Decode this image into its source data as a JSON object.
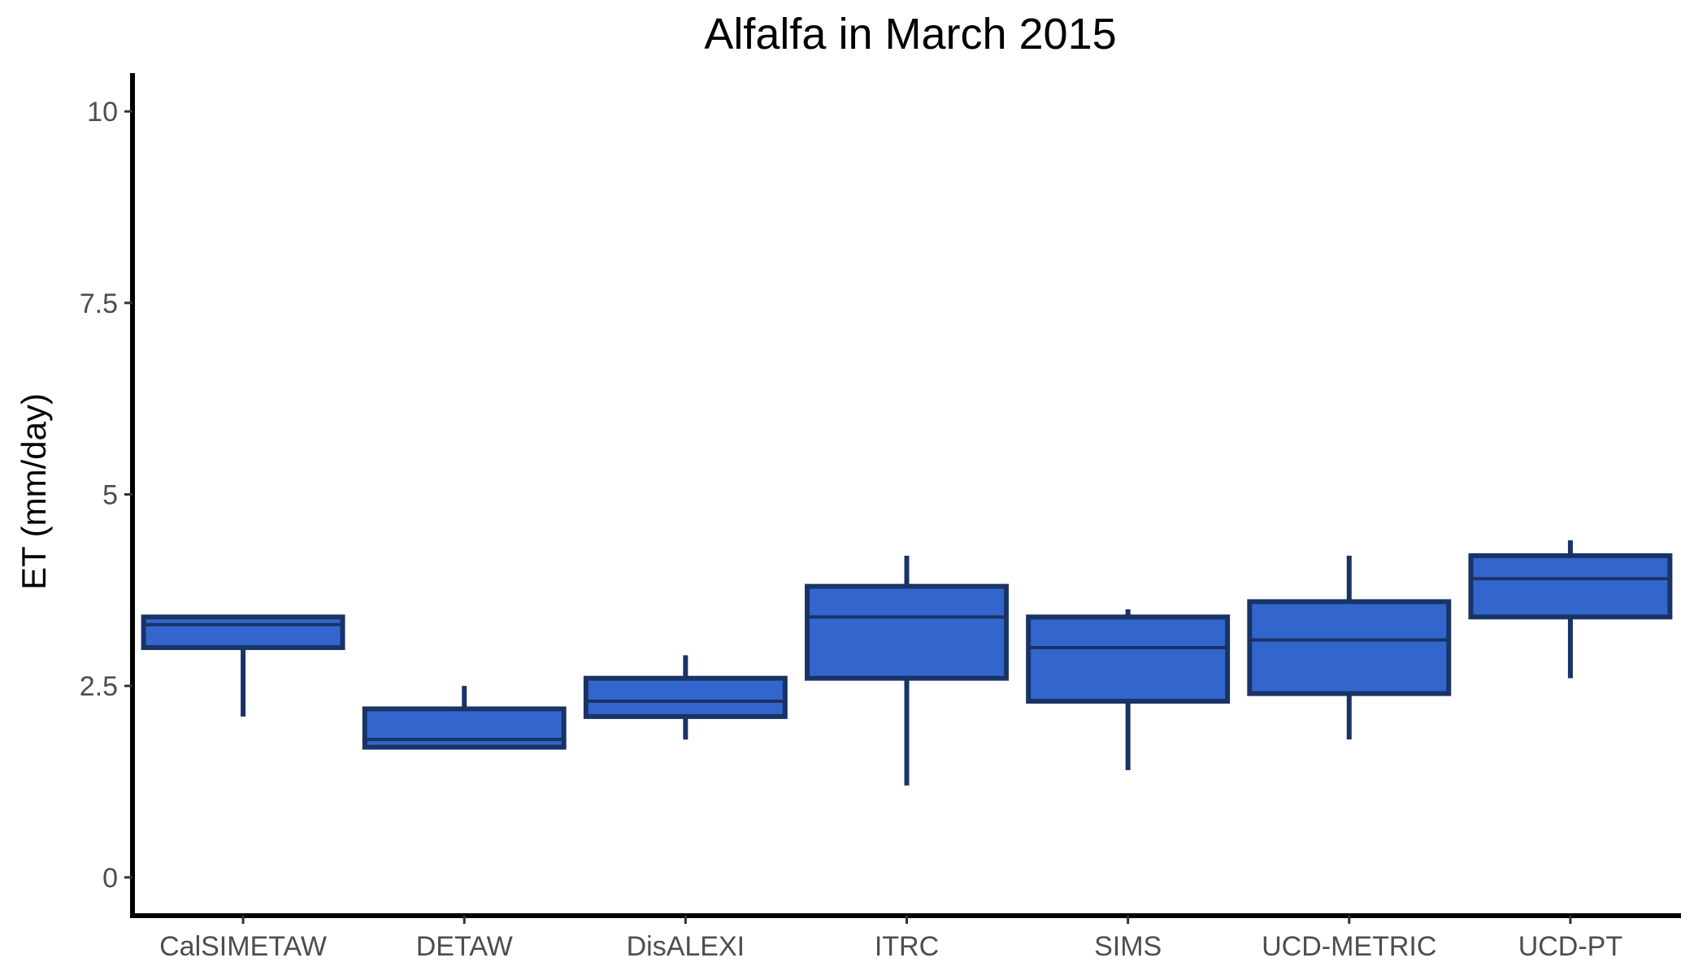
{
  "chart_data": {
    "type": "boxplot",
    "title": "Alfalfa in March 2015",
    "xlabel": "",
    "ylabel": "ET (mm/day)",
    "ylim": [
      -0.5,
      10.5
    ],
    "yticks": [
      0,
      2.5,
      5,
      7.5,
      10
    ],
    "ytick_labels": [
      "0",
      "2.5",
      "5",
      "7.5",
      "10"
    ],
    "grid": false,
    "legend": "none",
    "categories": [
      "CalSIMETAW",
      "DETAW",
      "DisALEXI",
      "ITRC",
      "SIMS",
      "UCD-METRIC",
      "UCD-PT"
    ],
    "boxes": [
      {
        "category": "CalSIMETAW",
        "whisker_low": 2.1,
        "q1": 3.0,
        "median": 3.3,
        "q3": 3.4,
        "whisker_high": 3.4
      },
      {
        "category": "DETAW",
        "whisker_low": 1.7,
        "q1": 1.7,
        "median": 1.8,
        "q3": 2.2,
        "whisker_high": 2.5
      },
      {
        "category": "DisALEXI",
        "whisker_low": 1.8,
        "q1": 2.1,
        "median": 2.3,
        "q3": 2.6,
        "whisker_high": 2.9
      },
      {
        "category": "ITRC",
        "whisker_low": 1.2,
        "q1": 2.6,
        "median": 3.4,
        "q3": 3.8,
        "whisker_high": 4.2
      },
      {
        "category": "SIMS",
        "whisker_low": 1.4,
        "q1": 2.3,
        "median": 3.0,
        "q3": 3.4,
        "whisker_high": 3.5
      },
      {
        "category": "UCD-METRIC",
        "whisker_low": 1.8,
        "q1": 2.4,
        "median": 3.1,
        "q3": 3.6,
        "whisker_high": 4.2
      },
      {
        "category": "UCD-PT",
        "whisker_low": 2.6,
        "q1": 3.4,
        "median": 3.9,
        "q3": 4.2,
        "whisker_high": 4.4
      }
    ],
    "colors": {
      "box_fill": "#3366cc",
      "box_outline": "#1a3366",
      "axis": "#000000",
      "tick_text": "#4d4d4d"
    }
  }
}
